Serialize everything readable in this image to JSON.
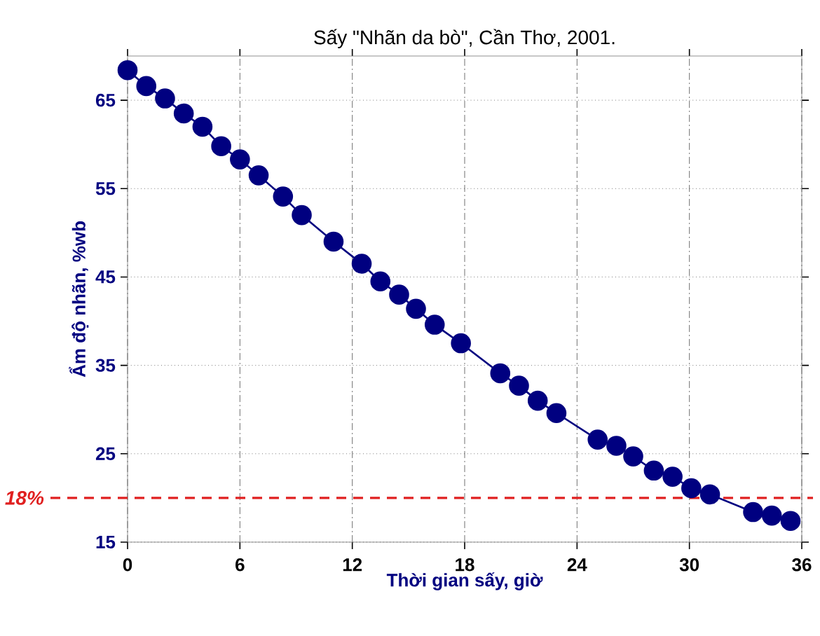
{
  "chart_data": {
    "type": "line",
    "title": "Sấy \"Nhãn da bò\", Cần Thơ, 2001.",
    "xlabel": "Thời gian sấy, giờ",
    "ylabel": "Ẩm độ nhãn, %wb",
    "x": [
      0,
      1,
      2,
      3,
      4,
      5,
      6,
      7,
      8.3,
      9.3,
      11,
      12.5,
      13.5,
      14.5,
      15.4,
      16.4,
      17.8,
      19.9,
      20.9,
      21.9,
      22.9,
      25.1,
      26.1,
      27,
      28.1,
      29.1,
      30.1,
      31.1,
      33.4,
      34.4,
      35.4
    ],
    "series": [
      {
        "color": "#000080",
        "values": [
          68.4,
          66.6,
          65.2,
          63.5,
          62.0,
          59.8,
          58.3,
          56.5,
          54.1,
          52.0,
          49.0,
          46.5,
          44.5,
          43.0,
          41.4,
          39.6,
          37.5,
          34.1,
          32.7,
          31.0,
          29.6,
          26.6,
          25.9,
          24.7,
          23.1,
          22.4,
          21.1,
          20.4,
          18.4,
          18.0,
          17.4
        ]
      }
    ],
    "xlim": [
      0,
      36
    ],
    "xticks": [
      0,
      6,
      12,
      18,
      24,
      30,
      36
    ],
    "ylim": [
      15,
      70
    ],
    "yticks": [
      15,
      25,
      35,
      45,
      55,
      65
    ],
    "grid": true,
    "marker": "circle",
    "line_style": "solid",
    "annotations": [
      "18%"
    ],
    "ref_lines": [
      {
        "axis": "y",
        "value": 20,
        "color": "#e02020",
        "line_style": "dashed"
      }
    ]
  }
}
